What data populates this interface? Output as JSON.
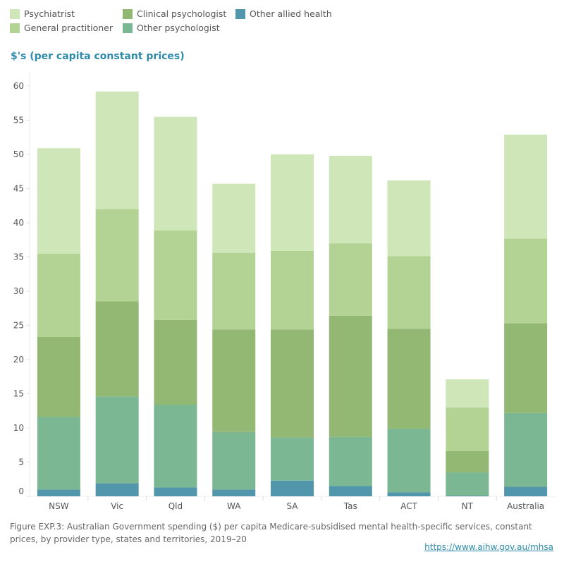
{
  "chart_data": {
    "type": "bar",
    "stacked": true,
    "ylabel": "$'s (per capita constant prices)",
    "ylim": [
      0,
      62
    ],
    "yticks": [
      0,
      5,
      10,
      15,
      20,
      25,
      30,
      35,
      40,
      45,
      50,
      55,
      60
    ],
    "grid": false,
    "legend": "top-left",
    "categories": [
      "NSW",
      "Vic",
      "Qld",
      "WA",
      "SA",
      "Tas",
      "ACT",
      "NT",
      "Australia"
    ],
    "series": [
      {
        "name": "Other allied health",
        "color": "#5196aa",
        "values": [
          1.0,
          1.9,
          1.3,
          1.0,
          2.3,
          1.5,
          0.6,
          0.1,
          1.4
        ]
      },
      {
        "name": "Other psychologist",
        "color": "#7bb792",
        "values": [
          10.6,
          12.7,
          12.1,
          8.4,
          6.3,
          7.2,
          9.3,
          3.4,
          10.8
        ]
      },
      {
        "name": "Clinical psychologist",
        "color": "#93b874",
        "values": [
          11.7,
          13.9,
          12.4,
          15.0,
          15.8,
          17.7,
          14.6,
          3.1,
          13.1
        ]
      },
      {
        "name": "General practitioner",
        "color": "#b3d395",
        "values": [
          12.2,
          13.5,
          13.1,
          11.2,
          11.5,
          10.6,
          10.6,
          6.4,
          12.4
        ]
      },
      {
        "name": "Psychiatrist",
        "color": "#cfe6b8",
        "values": [
          15.4,
          17.2,
          16.6,
          10.1,
          14.1,
          12.8,
          11.1,
          4.1,
          15.2
        ]
      }
    ]
  },
  "legend_order": [
    "Psychiatrist",
    "General practitioner",
    "Clinical psychologist",
    "Other psychologist",
    "Other allied health"
  ],
  "caption": "Figure EXP.3: Australian Government spending ($) per capita Medicare-subsidised mental health-specific services, constant prices, by provider type, states and territories, 2019–20",
  "link": "https://www.aihw.gov.au/mhsa"
}
